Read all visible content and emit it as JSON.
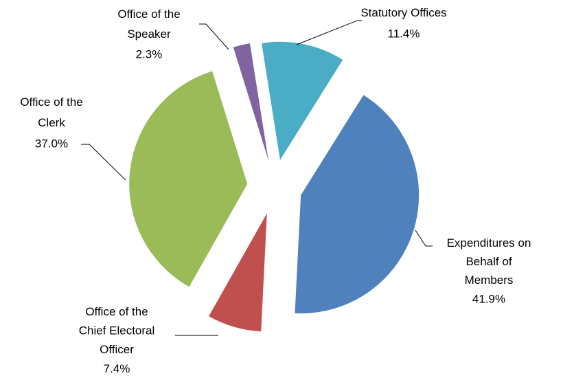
{
  "chart_data": {
    "type": "pie",
    "categories": [
      "Statutory Offices",
      "Expenditures on Behalf of Members",
      "Office of the Chief Electoral Officer",
      "Office of the Clerk",
      "Office of the Speaker"
    ],
    "values": [
      11.4,
      41.9,
      7.4,
      37.0,
      2.3
    ],
    "value_labels": [
      "11.4%",
      "41.9%",
      "7.4%",
      "37.0%",
      "2.3%"
    ],
    "colors": [
      "#4bacc6",
      "#4f81bd",
      "#c0504d",
      "#9bbb59",
      "#8064a2"
    ]
  }
}
